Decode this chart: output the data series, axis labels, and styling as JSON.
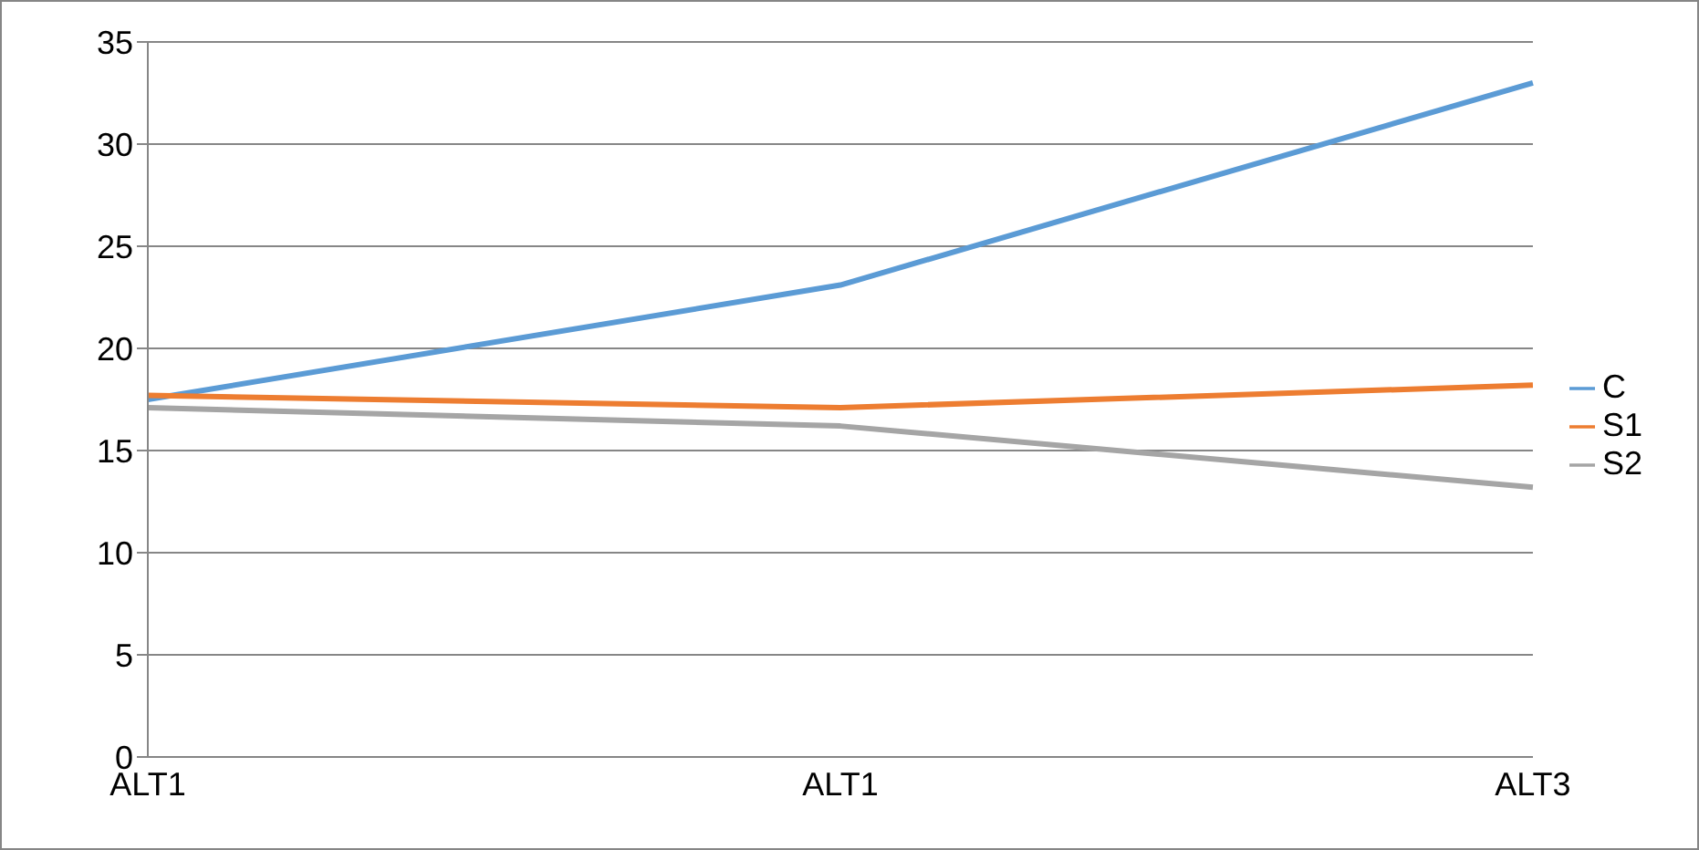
{
  "chart_data": {
    "type": "line",
    "categories": [
      "ALT1",
      "ALT1",
      "ALT3"
    ],
    "series": [
      {
        "name": "C",
        "color": "#5b9bd5",
        "values": [
          17.5,
          23.1,
          33
        ]
      },
      {
        "name": "S1",
        "color": "#ed7d31",
        "values": [
          17.7,
          17.1,
          18.2
        ]
      },
      {
        "name": "S2",
        "color": "#a5a5a5",
        "values": [
          17.1,
          16.2,
          13.2
        ]
      }
    ],
    "ylim": [
      0,
      35
    ],
    "yticks": [
      0,
      5,
      10,
      15,
      20,
      25,
      30,
      35
    ],
    "grid": "y",
    "legend": "right",
    "marker": "none",
    "line_style": "solid"
  }
}
